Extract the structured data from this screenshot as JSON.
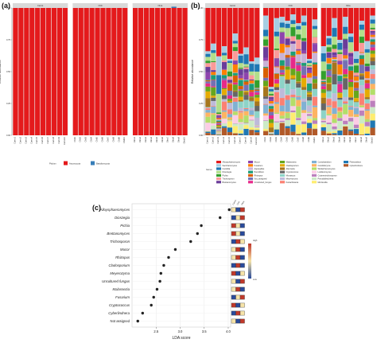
{
  "panels": {
    "a": "(a)",
    "b": "(b)",
    "c": "(c)"
  },
  "chart_data": [
    {
      "type": "bar",
      "panel": "(a)",
      "ylabel": "Relative abundance",
      "ylim": [
        0,
        1
      ],
      "yticks": [
        "0.00",
        "0.25",
        "0.50",
        "0.75",
        "1.00"
      ],
      "facets": [
        {
          "title": "Carrot",
          "categories": [
            "Carrot1",
            "Carrot2",
            "Carrot3",
            "Carrot4",
            "Carrot5",
            "Carrot6",
            "Carrot7",
            "Carrot8",
            "Carrot9",
            "Carrot10"
          ],
          "values": {
            "Ascomycota": [
              1,
              1,
              1,
              1,
              1,
              1,
              1,
              1,
              1,
              1
            ],
            "Basidiomycota": [
              0,
              0,
              0,
              0,
              0,
              0,
              0,
              0,
              0,
              0
            ]
          }
        },
        {
          "title": "Chili",
          "categories": [
            "Chili1",
            "Chili2",
            "Chili3",
            "Chili4",
            "Chili5",
            "Chili6",
            "Chili7",
            "Chili8",
            "Chili9",
            "Chili10"
          ],
          "values": {
            "Ascomycota": [
              1,
              1,
              1,
              1,
              1,
              1,
              1,
              1,
              1,
              1
            ],
            "Basidiomycota": [
              0,
              0,
              0,
              0,
              0,
              0,
              0,
              0,
              0,
              0
            ]
          }
        },
        {
          "title": "Okra",
          "categories": [
            "Okra1",
            "Okra2",
            "Okra3",
            "Okra4",
            "Okra5",
            "Okra6",
            "Okra7",
            "Okra8",
            "Okra9",
            "Okra10"
          ],
          "values": {
            "Ascomycota": [
              1,
              1,
              1,
              1,
              1,
              1,
              1,
              1,
              1,
              1
            ],
            "Basidiomycota": [
              0,
              0,
              0,
              0,
              0,
              0,
              0,
              0.01,
              0,
              0
            ]
          }
        }
      ],
      "legend": {
        "title": "Phylum",
        "placement": "bottom",
        "items": [
          {
            "name": "Ascomycota",
            "color": "#e41a1c"
          },
          {
            "name": "Basidiomycota",
            "color": "#377eb8"
          }
        ]
      }
    },
    {
      "type": "bar",
      "panel": "(b)",
      "ylabel": "Relative abundance",
      "ylim": [
        0,
        1
      ],
      "yticks": [
        "0.00",
        "0.25",
        "0.50",
        "0.75",
        "1.00"
      ],
      "facets": [
        {
          "title": "Carrot",
          "categories": [
            "Carrot1",
            "Carrot2",
            "Carrot3",
            "Carrot4",
            "Carrot5",
            "Carrot6",
            "Carrot7",
            "Carrot8",
            "Carrot9",
            "Carrot10"
          ],
          "red_top": [
            0.34,
            0.28,
            0.38,
            0.3,
            0.4,
            0.2,
            0.36,
            0.31,
            0.42,
            0.39
          ]
        },
        {
          "title": "Chili",
          "categories": [
            "Chili1",
            "Chili2",
            "Chili3",
            "Chili4",
            "Chili5",
            "Chili6",
            "Chili7",
            "Chili8",
            "Chili9",
            "Chili10"
          ],
          "red_top": [
            0.06,
            0.62,
            0.08,
            0.07,
            0.1,
            0.05,
            0.12,
            0.06,
            0.4,
            0.09
          ]
        },
        {
          "title": "Okra",
          "categories": [
            "Okra1",
            "Okra2",
            "Okra3",
            "Okra4",
            "Okra5",
            "Okra6",
            "Okra7",
            "Okra8",
            "Okra9",
            "Okra10"
          ],
          "red_top": [
            0.3,
            0.22,
            0.08,
            0.25,
            0.07,
            0.2,
            0.34,
            0.1,
            0.26,
            0.06
          ]
        }
      ],
      "legend": {
        "title": "Genus",
        "placement": "bottom",
        "items": [
          {
            "name": "Alloysphaeromyces",
            "color": "#e41a1c"
          },
          {
            "name": "Saccharomyces",
            "color": "#a6cee3"
          },
          {
            "name": "Candida",
            "color": "#1f78b4"
          },
          {
            "name": "Dioszegia",
            "color": "#b2df8a"
          },
          {
            "name": "Pichia",
            "color": "#33a02c"
          },
          {
            "name": "Trichosporon",
            "color": "#fb9a99"
          },
          {
            "name": "Brettanomyces",
            "color": "#6a3d9a"
          },
          {
            "name": "Mucor",
            "color": "#8e44ad"
          },
          {
            "name": "Fusarium",
            "color": "#ff7f00"
          },
          {
            "name": "Aspergillus",
            "color": "#cab2d6"
          },
          {
            "name": "Penicillium",
            "color": "#1b9e77"
          },
          {
            "name": "Rhizopus",
            "color": "#d95f02"
          },
          {
            "name": "Not_assigned",
            "color": "#7570b3"
          },
          {
            "name": "Uncultured_fungus",
            "color": "#e7298a"
          },
          {
            "name": "Malassezia",
            "color": "#66a61e"
          },
          {
            "name": "Cladosporium",
            "color": "#e6ab02"
          },
          {
            "name": "Alternaria",
            "color": "#a6761d"
          },
          {
            "name": "Cryptococcus",
            "color": "#666666"
          },
          {
            "name": "Monascus",
            "color": "#8dd3c7"
          },
          {
            "name": "Meyerozyma",
            "color": "#bebada"
          },
          {
            "name": "Kazachstania",
            "color": "#fb8072"
          },
          {
            "name": "Cystobasidium",
            "color": "#80b1d3"
          },
          {
            "name": "Candidozyma",
            "color": "#fdb462"
          },
          {
            "name": "Wickerhamomyces",
            "color": "#b3de69"
          },
          {
            "name": "Lodderomyces",
            "color": "#fccde5"
          },
          {
            "name": "Cutaneotrichosporon",
            "color": "#bc80bd"
          },
          {
            "name": "Pseudallescheria",
            "color": "#ccebc5"
          },
          {
            "name": "Mortierella",
            "color": "#ffed6f"
          },
          {
            "name": "Filobasidium",
            "color": "#1f78b4"
          },
          {
            "name": "Cyberlindnera",
            "color": "#b15928"
          }
        ]
      }
    },
    {
      "type": "scatter",
      "panel": "(c)",
      "xlabel": "LDA score",
      "xlim": [
        2.0,
        4.05
      ],
      "xticks": [
        "2.5",
        "3.0",
        "3.5",
        "4.0"
      ],
      "categories": [
        "Alloysphaeromyces",
        "Dioszegia",
        "Pichia",
        "Brettanomyces",
        "Trichosporon",
        "Mucor",
        "Rhizopus",
        "Cladosporium",
        "Meyerozyma",
        "Uncultured fungus",
        "Malassezia",
        "Fusarium",
        "Cryptococcus",
        "Cyberlindnera",
        "Not assigned"
      ],
      "values": [
        4.02,
        3.83,
        3.44,
        3.36,
        3.22,
        2.9,
        2.76,
        2.66,
        2.6,
        2.58,
        2.52,
        2.45,
        2.4,
        2.22,
        2.12
      ],
      "heatmap_columns": [
        "Carrot",
        "Chili",
        "Okra"
      ],
      "heatmap_cells": [
        [
          "#f6e3a8",
          "#2a4b9b",
          "#c0392b"
        ],
        [
          "#2a4b9b",
          "#f6e3a8",
          "#c0392b"
        ],
        [
          "#c0392b",
          "#f6e3a8",
          "#2a4b9b"
        ],
        [
          "#c0392b",
          "#f6e3a8",
          "#2a4b9b"
        ],
        [
          "#2a4b9b",
          "#c0392b",
          "#f6e3a8"
        ],
        [
          "#f6e3a8",
          "#c0392b",
          "#2a4b9b"
        ],
        [
          "#f6e3a8",
          "#c0392b",
          "#2a4b9b"
        ],
        [
          "#2a4b9b",
          "#c0392b",
          "#2a4b9b"
        ],
        [
          "#c0392b",
          "#2a4b9b",
          "#f6e3a8"
        ],
        [
          "#f6e3a8",
          "#2a4b9b",
          "#c0392b"
        ],
        [
          "#f6e3a8",
          "#c0392b",
          "#2a4b9b"
        ],
        [
          "#2a4b9b",
          "#f6e3a8",
          "#c0392b"
        ],
        [
          "#c0392b",
          "#2a4b9b",
          "#f6e3a8"
        ],
        [
          "#2a4b9b",
          "#c0392b",
          "#f6e3a8"
        ],
        [
          "#f6e3a8",
          "#2a4b9b",
          "#c0392b"
        ]
      ],
      "colorbar": {
        "high": "High",
        "low": "Low",
        "colors": [
          "#c0392b",
          "#f6e3a8",
          "#2a4b9b"
        ]
      }
    }
  ]
}
